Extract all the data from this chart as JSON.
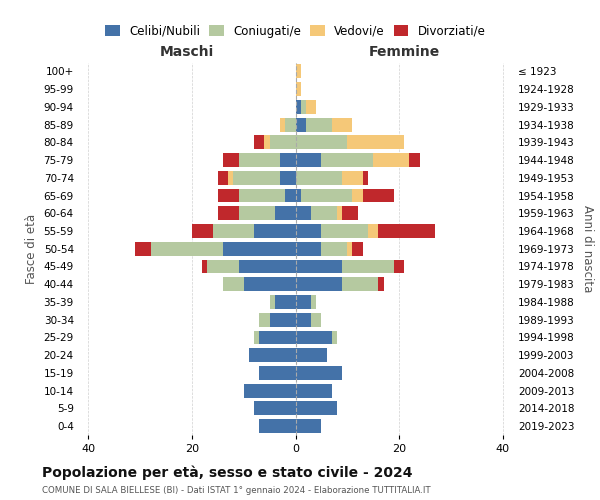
{
  "age_groups": [
    "0-4",
    "5-9",
    "10-14",
    "15-19",
    "20-24",
    "25-29",
    "30-34",
    "35-39",
    "40-44",
    "45-49",
    "50-54",
    "55-59",
    "60-64",
    "65-69",
    "70-74",
    "75-79",
    "80-84",
    "85-89",
    "90-94",
    "95-99",
    "100+"
  ],
  "birth_years": [
    "2019-2023",
    "2014-2018",
    "2009-2013",
    "2004-2008",
    "1999-2003",
    "1994-1998",
    "1989-1993",
    "1984-1988",
    "1979-1983",
    "1974-1978",
    "1969-1973",
    "1964-1968",
    "1959-1963",
    "1954-1958",
    "1949-1953",
    "1944-1948",
    "1939-1943",
    "1934-1938",
    "1929-1933",
    "1924-1928",
    "≤ 1923"
  ],
  "colors": {
    "celibi": "#4472a8",
    "coniugati": "#b5c9a0",
    "vedovi": "#f5c878",
    "divorziati": "#c0282c"
  },
  "maschi": {
    "celibi": [
      7,
      8,
      10,
      7,
      9,
      7,
      5,
      4,
      10,
      11,
      14,
      8,
      4,
      2,
      3,
      3,
      0,
      0,
      0,
      0,
      0
    ],
    "coniugati": [
      0,
      0,
      0,
      0,
      0,
      1,
      2,
      1,
      4,
      6,
      14,
      8,
      7,
      9,
      9,
      8,
      5,
      2,
      0,
      0,
      0
    ],
    "vedovi": [
      0,
      0,
      0,
      0,
      0,
      0,
      0,
      0,
      0,
      0,
      0,
      0,
      0,
      0,
      1,
      0,
      1,
      1,
      0,
      0,
      0
    ],
    "divorziati": [
      0,
      0,
      0,
      0,
      0,
      0,
      0,
      0,
      0,
      1,
      3,
      4,
      4,
      4,
      2,
      3,
      2,
      0,
      0,
      0,
      0
    ]
  },
  "femmine": {
    "celibi": [
      5,
      8,
      7,
      9,
      6,
      7,
      3,
      3,
      9,
      9,
      5,
      5,
      3,
      1,
      0,
      5,
      0,
      2,
      1,
      0,
      0
    ],
    "coniugati": [
      0,
      0,
      0,
      0,
      0,
      1,
      2,
      1,
      7,
      10,
      5,
      9,
      5,
      10,
      9,
      10,
      10,
      5,
      1,
      0,
      0
    ],
    "vedovi": [
      0,
      0,
      0,
      0,
      0,
      0,
      0,
      0,
      0,
      0,
      1,
      2,
      1,
      2,
      4,
      7,
      11,
      4,
      2,
      1,
      1
    ],
    "divorziati": [
      0,
      0,
      0,
      0,
      0,
      0,
      0,
      0,
      1,
      2,
      2,
      11,
      3,
      6,
      1,
      2,
      0,
      0,
      0,
      0,
      0
    ]
  },
  "xlim": 42,
  "title": "Popolazione per età, sesso e stato civile - 2024",
  "subtitle": "COMUNE DI SALA BIELLESE (BI) - Dati ISTAT 1° gennaio 2024 - Elaborazione TUTTITALIA.IT",
  "xlabel_left": "Maschi",
  "xlabel_right": "Femmine",
  "ylabel_left": "Fasce di età",
  "ylabel_right": "Anni di nascita",
  "legend_labels": [
    "Celibi/Nubili",
    "Coniugati/e",
    "Vedovi/e",
    "Divorziati/e"
  ],
  "bg_color": "#ffffff",
  "grid_color": "#cccccc"
}
